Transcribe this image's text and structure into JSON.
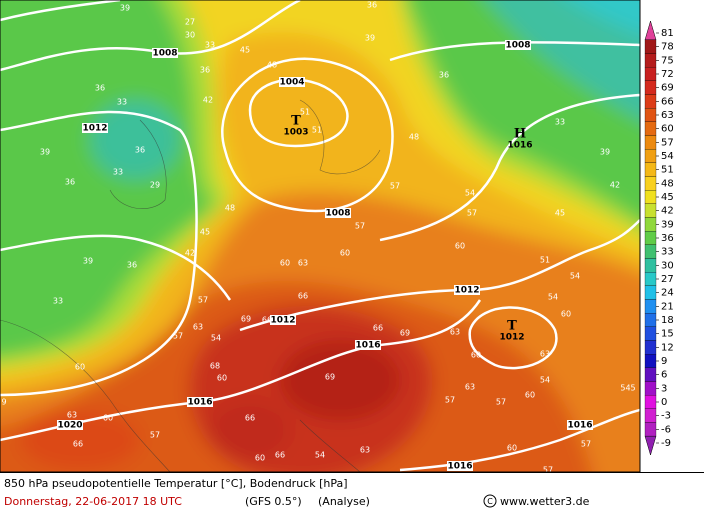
{
  "map": {
    "isobar_labels": [
      "1008",
      "1008",
      "1004",
      "1012",
      "1008",
      "1012",
      "1012",
      "1016",
      "1016",
      "1020",
      "1016",
      "1016"
    ],
    "pressure_centers": [
      {
        "symbol": "T",
        "value": "1003"
      },
      {
        "symbol": "H",
        "value": "1016"
      },
      {
        "symbol": "T",
        "value": "1012"
      }
    ],
    "temperature_labels": [
      39,
      36,
      27,
      30,
      33,
      36,
      42,
      39,
      45,
      48,
      33,
      36,
      39,
      36,
      33,
      29,
      36,
      51,
      51,
      48,
      36,
      33,
      39,
      42,
      45,
      54,
      57,
      57,
      57,
      60,
      51,
      54,
      54,
      60,
      60,
      63,
      66,
      57,
      54,
      63,
      69,
      66,
      36,
      39,
      33,
      42,
      45,
      48,
      57,
      60,
      60,
      63,
      66,
      68,
      60,
      69,
      66,
      69,
      63,
      60,
      63,
      60,
      63,
      57,
      57,
      54,
      545,
      60,
      60,
      57,
      57,
      66,
      66,
      60,
      63,
      54,
      57,
      9
    ]
  },
  "colorbar": {
    "ticks": [
      81,
      78,
      75,
      72,
      69,
      66,
      63,
      60,
      57,
      54,
      51,
      48,
      45,
      42,
      39,
      36,
      33,
      30,
      27,
      24,
      21,
      18,
      15,
      12,
      9,
      6,
      3,
      0,
      -3,
      -6,
      -9
    ],
    "colors": [
      "#e0409a",
      "#a01818",
      "#b41c1c",
      "#c82020",
      "#d42a1e",
      "#dc3c18",
      "#e05414",
      "#e46a12",
      "#ec8a10",
      "#f0a014",
      "#f4b818",
      "#f8d020",
      "#f0e020",
      "#c8e030",
      "#90d83c",
      "#60cc48",
      "#40c070",
      "#30c0a0",
      "#28c8c8",
      "#20c0e8",
      "#2090f0",
      "#2070e8",
      "#2050e0",
      "#2030d0",
      "#1010c0",
      "#6010c0",
      "#a010c8",
      "#e010e0",
      "#d020d0",
      "#b020c0",
      "#9020b0"
    ]
  },
  "footer": {
    "title": "850 hPa pseudopotentielle Temperatur [°C], Bodendruck [hPa]",
    "date": "Donnerstag, 22-06-2017  18 UTC",
    "model": "(GFS 0.5°)",
    "run": "(Analyse)",
    "source": "www.wetter3.de"
  }
}
